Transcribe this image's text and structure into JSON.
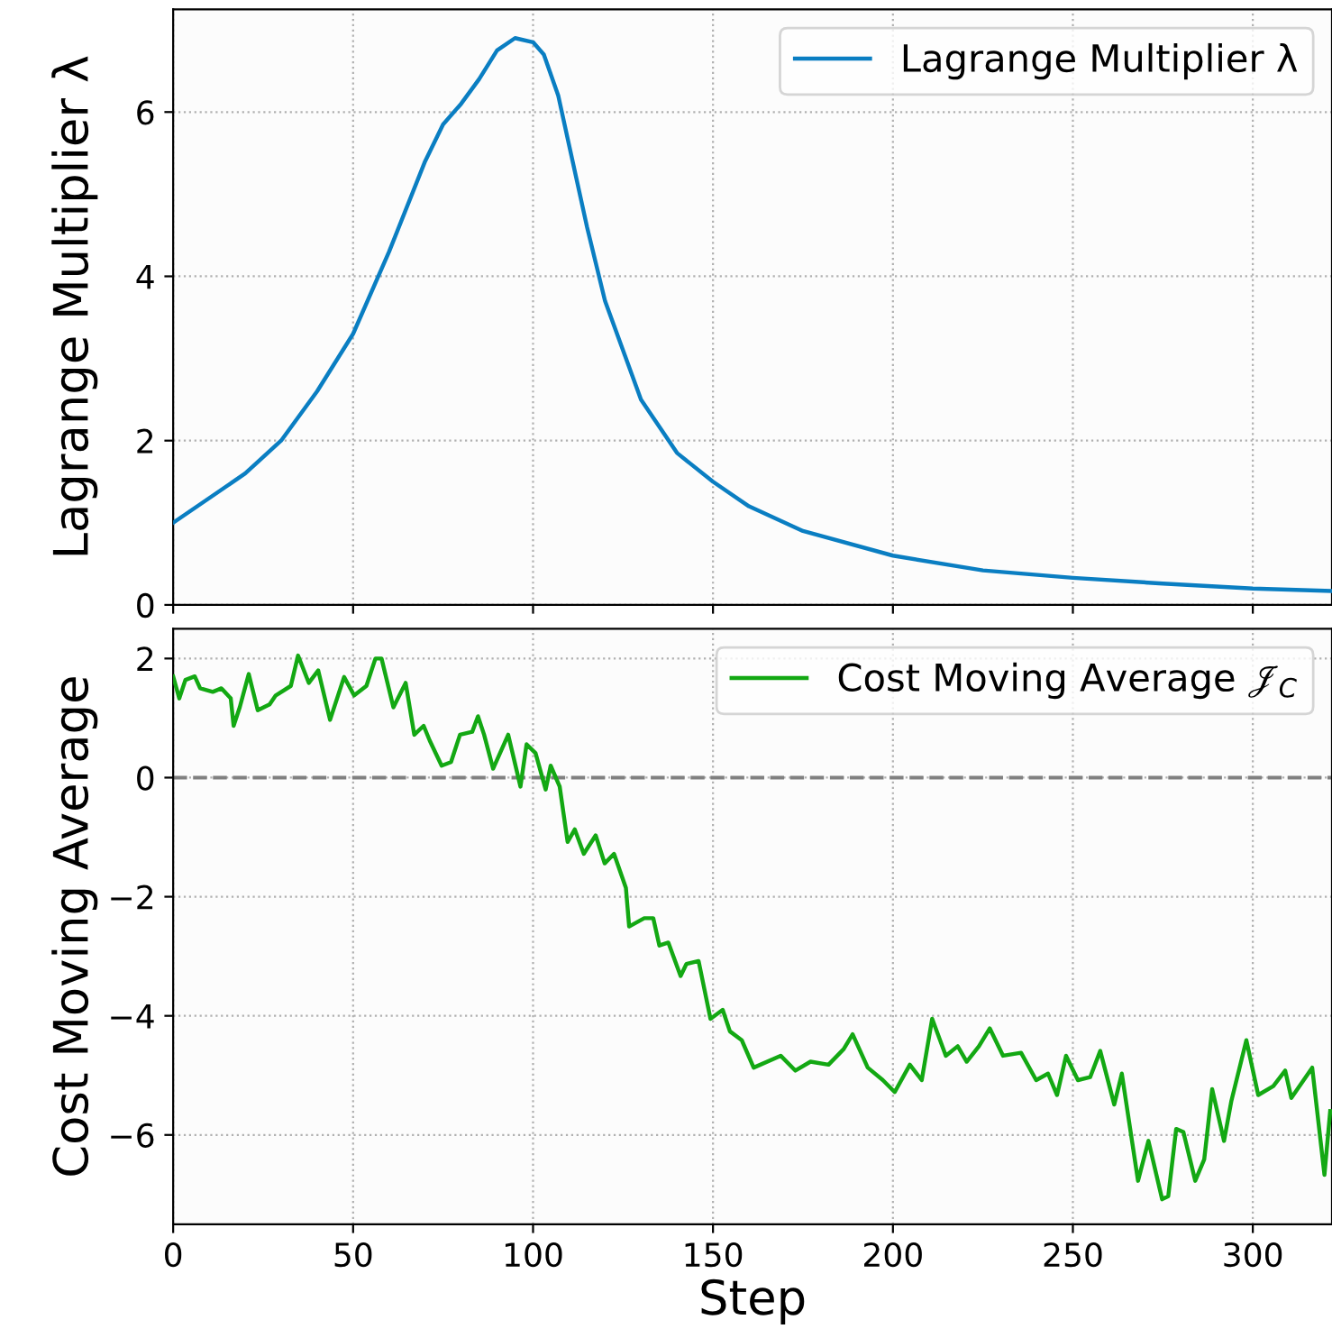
{
  "chart_data": [
    {
      "type": "line",
      "ylabel": "Lagrange Multiplier λ",
      "xlim": [
        0,
        322
      ],
      "ylim": [
        0,
        7.25
      ],
      "xticks": [
        0,
        50,
        100,
        150,
        200,
        250,
        300
      ],
      "yticks": [
        0,
        2,
        4,
        6
      ],
      "grid": true,
      "legend": "top right",
      "tick_labels": "y",
      "series": [
        {
          "name": "Lagrange Multiplier λ",
          "color": "#0a7ec2",
          "x": [
            0,
            10,
            20,
            30,
            40,
            50,
            60,
            70,
            75,
            80,
            85,
            90,
            95,
            100,
            103,
            107,
            110,
            115,
            120,
            130,
            140,
            150,
            160,
            175,
            200,
            225,
            250,
            275,
            300,
            322
          ],
          "values": [
            1.0,
            1.3,
            1.6,
            2.0,
            2.6,
            3.3,
            4.3,
            5.4,
            5.85,
            6.1,
            6.4,
            6.75,
            6.9,
            6.85,
            6.7,
            6.2,
            5.6,
            4.6,
            3.7,
            2.5,
            1.85,
            1.5,
            1.2,
            0.9,
            0.6,
            0.42,
            0.33,
            0.26,
            0.2,
            0.17
          ]
        }
      ]
    },
    {
      "type": "line",
      "xlabel": "Step",
      "ylabel": "Cost Moving Average",
      "xlim": [
        0,
        322
      ],
      "ylim": [
        -7.5,
        2.5
      ],
      "xticks": [
        0,
        50,
        100,
        150,
        200,
        250,
        300
      ],
      "yticks": [
        -6,
        -4,
        -2,
        0,
        2
      ],
      "grid": true,
      "legend": "top right",
      "ref_lines": [
        {
          "axis": "y",
          "value": 0,
          "color": "#808080",
          "line_style": "dashed"
        }
      ],
      "series": [
        {
          "name": "Cost Moving Average 𝒥$_{C}$",
          "color": "#13a813",
          "x": [
            0,
            1.7,
            3.4,
            6,
            7.5,
            11,
            13.4,
            16,
            16.8,
            18.5,
            21,
            23.5,
            26.8,
            28.5,
            32.7,
            34.7,
            37.7,
            40.3,
            43.6,
            47.5,
            50.3,
            53.7,
            56.2,
            57.9,
            61.2,
            64.6,
            67,
            69.6,
            71.3,
            74.6,
            77.2,
            79.7,
            83.1,
            84.7,
            86.4,
            88.9,
            93.1,
            96.5,
            98.2,
            100.7,
            103.5,
            104.9,
            107.4,
            109.6,
            111.6,
            114.1,
            117.4,
            119.9,
            122.5,
            125.8,
            126.7,
            130.9,
            133.4,
            135.1,
            137.6,
            141,
            142.6,
            146,
            149.3,
            152.7,
            154.7,
            158,
            161.3,
            168.8,
            172.9,
            177.1,
            182.1,
            186.3,
            188.8,
            193,
            197.2,
            200.5,
            204.7,
            208,
            210.9,
            214.7,
            218,
            220.5,
            223.9,
            226.9,
            230.6,
            235.6,
            239.8,
            243.1,
            245.6,
            248.1,
            251.4,
            254.8,
            257.6,
            261.5,
            263.6,
            268.1,
            271,
            274.8,
            276.5,
            278.7,
            280.7,
            284,
            286.5,
            288.7,
            292,
            294,
            298.2,
            301.5,
            305.7,
            309,
            310.7,
            316.5,
            319.9,
            321.5
          ],
          "values": [
            1.7,
            1.33,
            1.64,
            1.7,
            1.5,
            1.44,
            1.5,
            1.33,
            0.87,
            1.18,
            1.74,
            1.13,
            1.23,
            1.38,
            1.54,
            2.05,
            1.59,
            1.8,
            0.97,
            1.69,
            1.38,
            1.54,
            2.0,
            2.0,
            1.18,
            1.59,
            0.72,
            0.87,
            0.62,
            0.2,
            0.26,
            0.72,
            0.77,
            1.03,
            0.72,
            0.15,
            0.72,
            -0.15,
            0.56,
            0.41,
            -0.2,
            0.2,
            -0.15,
            -1.08,
            -0.87,
            -1.28,
            -0.97,
            -1.44,
            -1.28,
            -1.85,
            -2.5,
            -2.36,
            -2.36,
            -2.82,
            -2.77,
            -3.33,
            -3.13,
            -3.08,
            -4.05,
            -3.9,
            -4.26,
            -4.41,
            -4.87,
            -4.67,
            -4.92,
            -4.77,
            -4.82,
            -4.56,
            -4.31,
            -4.87,
            -5.08,
            -5.28,
            -4.82,
            -5.08,
            -4.05,
            -4.67,
            -4.51,
            -4.77,
            -4.51,
            -4.21,
            -4.67,
            -4.62,
            -5.08,
            -4.97,
            -5.33,
            -4.67,
            -5.08,
            -5.03,
            -4.59,
            -5.49,
            -4.97,
            -6.77,
            -6.1,
            -7.08,
            -7.03,
            -5.9,
            -5.95,
            -6.77,
            -6.41,
            -5.23,
            -6.1,
            -5.44,
            -4.41,
            -5.33,
            -5.18,
            -4.92,
            -5.38,
            -4.87,
            -6.67,
            -5.6
          ]
        }
      ]
    }
  ]
}
